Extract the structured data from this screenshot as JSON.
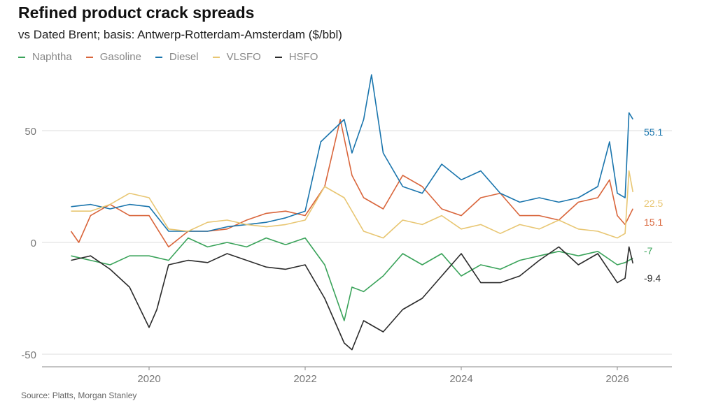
{
  "chart_data": {
    "type": "line",
    "title": "Refined product crack spreads",
    "subtitle": "vs Dated Brent; basis: Antwerp-Rotterdam-Amsterdam ($/bbl)",
    "source": "Source: Platts, Morgan Stanley",
    "xlabel": "",
    "ylabel": "",
    "xlim": [
      2019.0,
      2026.2
    ],
    "ylim": [
      -55,
      80
    ],
    "x_ticks": [
      2020,
      2022,
      2024,
      2026
    ],
    "y_ticks": [
      -50,
      0,
      50
    ],
    "grid": true,
    "legend_position": "top-left",
    "series": [
      {
        "name": "Naphtha",
        "color": "#3aa35a",
        "end_label": "-7",
        "x": [
          2019,
          2019.25,
          2019.5,
          2019.75,
          2020,
          2020.25,
          2020.5,
          2020.75,
          2021,
          2021.25,
          2021.5,
          2021.75,
          2022,
          2022.25,
          2022.5,
          2022.6,
          2022.75,
          2023,
          2023.25,
          2023.5,
          2023.75,
          2024,
          2024.25,
          2024.5,
          2024.75,
          2025,
          2025.25,
          2025.5,
          2025.75,
          2026,
          2026.1,
          2026.2
        ],
        "y": [
          -6,
          -8,
          -10,
          -6,
          -6,
          -8,
          2,
          -2,
          0,
          -2,
          2,
          -1,
          2,
          -10,
          -35,
          -20,
          -22,
          -15,
          -5,
          -10,
          -5,
          -15,
          -10,
          -12,
          -8,
          -6,
          -4,
          -6,
          -4,
          -10,
          -9,
          -7
        ]
      },
      {
        "name": "Gasoline",
        "color": "#d9653b",
        "end_label": "15.1",
        "x": [
          2019,
          2019.1,
          2019.25,
          2019.5,
          2019.75,
          2020,
          2020.25,
          2020.5,
          2020.75,
          2021,
          2021.25,
          2021.5,
          2021.75,
          2022,
          2022.25,
          2022.45,
          2022.6,
          2022.75,
          2023,
          2023.25,
          2023.5,
          2023.75,
          2024,
          2024.25,
          2024.5,
          2024.75,
          2025,
          2025.25,
          2025.5,
          2025.75,
          2025.9,
          2026,
          2026.1,
          2026.2
        ],
        "y": [
          5,
          0,
          12,
          17,
          12,
          12,
          -2,
          5,
          5,
          6,
          10,
          13,
          14,
          12,
          25,
          55,
          30,
          20,
          15,
          30,
          25,
          15,
          12,
          20,
          22,
          12,
          12,
          10,
          18,
          20,
          28,
          12,
          8,
          15.1
        ]
      },
      {
        "name": "Diesel",
        "color": "#1a75ad",
        "end_label": "55.1",
        "x": [
          2019,
          2019.25,
          2019.5,
          2019.75,
          2020,
          2020.25,
          2020.5,
          2020.75,
          2021,
          2021.25,
          2021.5,
          2021.75,
          2022,
          2022.2,
          2022.35,
          2022.5,
          2022.6,
          2022.75,
          2022.85,
          2023,
          2023.25,
          2023.5,
          2023.75,
          2024,
          2024.25,
          2024.5,
          2024.75,
          2025,
          2025.25,
          2025.5,
          2025.75,
          2025.9,
          2026,
          2026.1,
          2026.15,
          2026.2
        ],
        "y": [
          16,
          17,
          15,
          17,
          16,
          5,
          5,
          5,
          7,
          8,
          9,
          11,
          14,
          45,
          50,
          55,
          40,
          55,
          75,
          40,
          25,
          22,
          35,
          28,
          32,
          22,
          18,
          20,
          18,
          20,
          25,
          45,
          22,
          20,
          58,
          55.1
        ]
      },
      {
        "name": "VLSFO",
        "color": "#e8c672",
        "end_label": "22.5",
        "x": [
          2019,
          2019.25,
          2019.5,
          2019.75,
          2020,
          2020.25,
          2020.5,
          2020.75,
          2021,
          2021.25,
          2021.5,
          2021.75,
          2022,
          2022.25,
          2022.5,
          2022.75,
          2023,
          2023.25,
          2023.5,
          2023.75,
          2024,
          2024.25,
          2024.5,
          2024.75,
          2025,
          2025.25,
          2025.5,
          2025.75,
          2026,
          2026.1,
          2026.15,
          2026.2
        ],
        "y": [
          14,
          14,
          17,
          22,
          20,
          6,
          5,
          9,
          10,
          8,
          7,
          8,
          10,
          25,
          20,
          5,
          2,
          10,
          8,
          12,
          6,
          8,
          4,
          8,
          6,
          10,
          6,
          5,
          2,
          4,
          32,
          22.5
        ]
      },
      {
        "name": "HSFO",
        "color": "#2b2b2b",
        "end_label": "-9.4",
        "x": [
          2019,
          2019.25,
          2019.5,
          2019.75,
          2020,
          2020.1,
          2020.25,
          2020.5,
          2020.75,
          2021,
          2021.25,
          2021.5,
          2021.75,
          2022,
          2022.25,
          2022.5,
          2022.6,
          2022.75,
          2023,
          2023.25,
          2023.5,
          2023.75,
          2024,
          2024.25,
          2024.5,
          2024.75,
          2025,
          2025.25,
          2025.5,
          2025.75,
          2026,
          2026.1,
          2026.15,
          2026.2
        ],
        "y": [
          -8,
          -6,
          -12,
          -20,
          -38,
          -30,
          -10,
          -8,
          -9,
          -5,
          -8,
          -11,
          -12,
          -10,
          -25,
          -45,
          -48,
          -35,
          -40,
          -30,
          -25,
          -15,
          -5,
          -18,
          -18,
          -15,
          -8,
          -2,
          -10,
          -5,
          -18,
          -16,
          -2,
          -9.4
        ]
      }
    ]
  }
}
